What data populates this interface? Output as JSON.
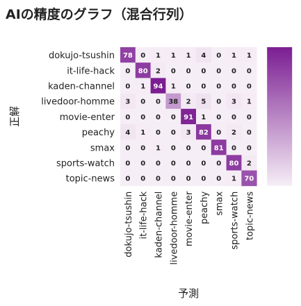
{
  "chart_data": {
    "type": "heatmap",
    "title": "AIの精度のグラフ（混合行列）",
    "xlabel": "予測",
    "ylabel": "正解",
    "x_categories": [
      "dokujo-tsushin",
      "it-life-hack",
      "kaden-channel",
      "livedoor-homme",
      "movie-enter",
      "peachy",
      "smax",
      "sports-watch",
      "topic-news"
    ],
    "y_categories": [
      "dokujo-tsushin",
      "it-life-hack",
      "kaden-channel",
      "livedoor-homme",
      "movie-enter",
      "peachy",
      "smax",
      "sports-watch",
      "topic-news"
    ],
    "values": [
      [
        78,
        0,
        1,
        1,
        1,
        4,
        0,
        1,
        1
      ],
      [
        0,
        80,
        2,
        0,
        0,
        0,
        0,
        0,
        0
      ],
      [
        0,
        1,
        94,
        1,
        0,
        0,
        0,
        0,
        0
      ],
      [
        3,
        0,
        0,
        38,
        2,
        5,
        0,
        3,
        1
      ],
      [
        0,
        0,
        0,
        0,
        91,
        1,
        0,
        0,
        0
      ],
      [
        4,
        1,
        0,
        0,
        3,
        82,
        0,
        2,
        0
      ],
      [
        0,
        0,
        1,
        0,
        0,
        0,
        81,
        0,
        0
      ],
      [
        0,
        0,
        0,
        0,
        0,
        0,
        0,
        80,
        2
      ],
      [
        0,
        0,
        0,
        0,
        0,
        0,
        0,
        1,
        70
      ]
    ],
    "color_range": [
      0,
      94
    ],
    "colors": {
      "low": "#f6eef6",
      "high": "#7b1e92",
      "text_dark": "#222222",
      "text_light": "#ffffff"
    },
    "colorbar": true
  }
}
